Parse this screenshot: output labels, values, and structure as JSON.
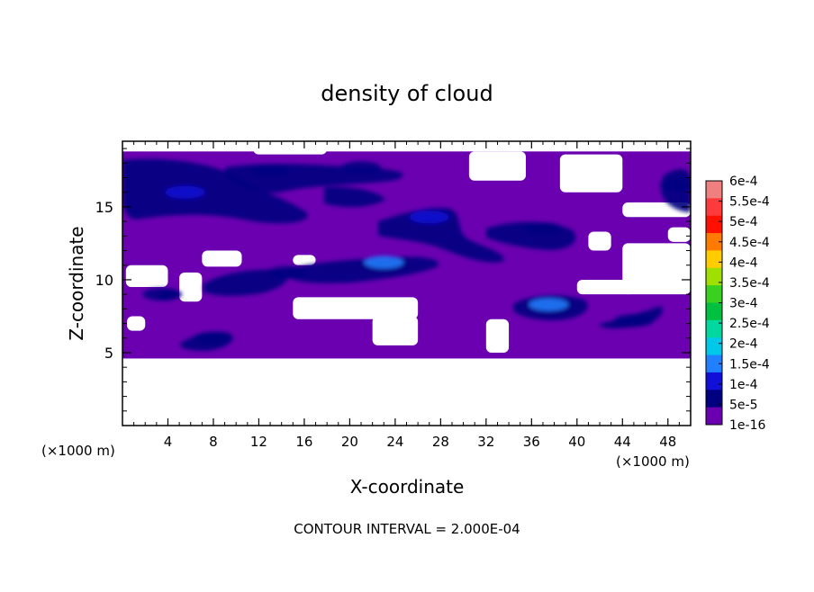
{
  "chart_data": {
    "type": "heatmap",
    "title": "density of cloud",
    "xlabel": "X-coordinate",
    "ylabel": "Z-coordinate",
    "x_unit": "(×1000 m)",
    "x_unit_right": "(×1000 m)",
    "xlim": [
      0,
      50
    ],
    "ylim": [
      0,
      19.5
    ],
    "x_ticks": [
      4,
      8,
      12,
      16,
      20,
      24,
      28,
      32,
      36,
      40,
      44,
      48
    ],
    "y_ticks": [
      5,
      10,
      15
    ],
    "footer": "CONTOUR INTERVAL = 2.000E-04",
    "colorbar": {
      "levels": [
        "6e-4",
        "5.5e-4",
        "5e-4",
        "4.5e-4",
        "4e-4",
        "3.5e-4",
        "3e-4",
        "2.5e-4",
        "2e-4",
        "1.5e-4",
        "1e-4",
        "5e-5",
        "1e-16"
      ],
      "colors": [
        "#f08080",
        "#ff3a3a",
        "#ff1000",
        "#ff7a00",
        "#ffcc00",
        "#a0e000",
        "#3ad020",
        "#00c040",
        "#00d8a0",
        "#00c8e8",
        "#2080ff",
        "#1010d8",
        "#000080",
        "#6a00b0"
      ]
    },
    "fields": {
      "cloud_layer": {
        "x": [
          0,
          50
        ],
        "z": [
          4.6,
          18.8
        ],
        "level": "1e-16"
      },
      "clear_regions": [
        {
          "x": [
            0,
            50
          ],
          "z": [
            0,
            4.6
          ]
        },
        {
          "x": [
            11.5,
            18.0
          ],
          "z": [
            18.6,
            19.5
          ]
        },
        {
          "x": [
            30.5,
            35.5
          ],
          "z": [
            16.8,
            18.8
          ]
        },
        {
          "x": [
            38.5,
            44.0
          ],
          "z": [
            16.0,
            18.6
          ]
        },
        {
          "x": [
            44.0,
            50.0
          ],
          "z": [
            14.3,
            15.3
          ]
        },
        {
          "x": [
            7.0,
            10.5
          ],
          "z": [
            10.9,
            12.0
          ]
        },
        {
          "x": [
            15.0,
            17.0
          ],
          "z": [
            11.0,
            11.7
          ]
        },
        {
          "x": [
            0.3,
            4.0
          ],
          "z": [
            9.5,
            11.0
          ]
        },
        {
          "x": [
            5.0,
            7.0
          ],
          "z": [
            8.5,
            10.5
          ]
        },
        {
          "x": [
            0.4,
            2.0
          ],
          "z": [
            6.5,
            7.5
          ]
        },
        {
          "x": [
            15.0,
            26.0
          ],
          "z": [
            7.3,
            8.8
          ]
        },
        {
          "x": [
            22.0,
            26.0
          ],
          "z": [
            5.5,
            7.5
          ]
        },
        {
          "x": [
            32.0,
            34.0
          ],
          "z": [
            5.0,
            7.3
          ]
        },
        {
          "x": [
            40.0,
            45.0
          ],
          "z": [
            9.0,
            10.0
          ]
        },
        {
          "x": [
            44.0,
            50.0
          ],
          "z": [
            9.0,
            12.5
          ]
        },
        {
          "x": [
            41.0,
            43.0
          ],
          "z": [
            12.0,
            13.3
          ]
        },
        {
          "x": [
            48.0,
            50.0
          ],
          "z": [
            12.6,
            13.6
          ]
        }
      ],
      "cores": [
        {
          "x": 5.5,
          "z": 16.0,
          "level": "1e-4"
        },
        {
          "x": 13.0,
          "z": 17.5,
          "level": "5e-5"
        },
        {
          "x": 21.0,
          "z": 17.7,
          "level": "5e-5"
        },
        {
          "x": 27.0,
          "z": 14.3,
          "level": "1e-4"
        },
        {
          "x": 37.0,
          "z": 13.5,
          "level": "5e-5"
        },
        {
          "x": 49.0,
          "z": 16.5,
          "level": "5e-5"
        },
        {
          "x": 14.5,
          "z": 10.5,
          "level": "5e-5"
        },
        {
          "x": 23.0,
          "z": 11.2,
          "level": "1.5e-4"
        },
        {
          "x": 37.5,
          "z": 8.3,
          "level": "1.5e-4"
        },
        {
          "x": 45.0,
          "z": 7.2,
          "level": "5e-5"
        },
        {
          "x": 8.0,
          "z": 6.0,
          "level": "5e-5"
        },
        {
          "x": 3.5,
          "z": 9.0,
          "level": "5e-5"
        }
      ]
    },
    "legend": "right"
  }
}
